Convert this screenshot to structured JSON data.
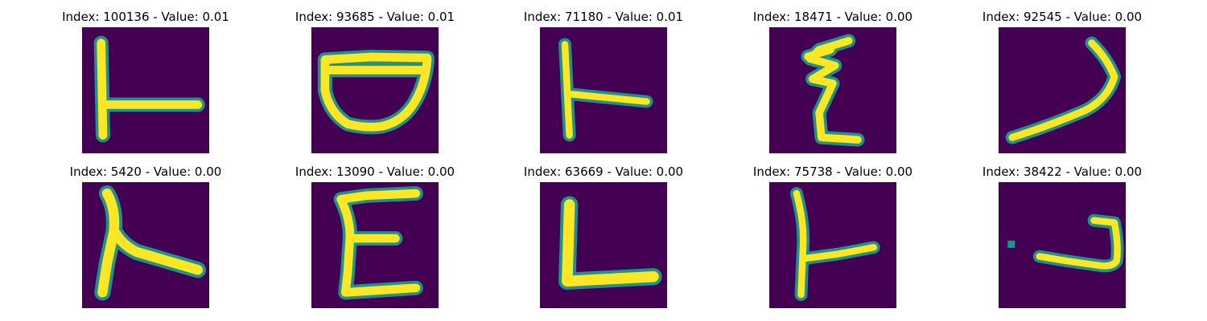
{
  "colors": {
    "background": "#440154",
    "stroke_mid": "#21918c",
    "stroke_hi": "#fde725",
    "stroke_lo": "#3b528b"
  },
  "panels": [
    {
      "title": "Index: 100136 - Value: 0.01",
      "glyph": "T rotated (vertical bar with right arm)"
    },
    {
      "title": "Index: 93685 - Value: 0.01",
      "glyph": "bowl shape"
    },
    {
      "title": "Index: 71180 - Value: 0.01",
      "glyph": "vertical bar with right arm"
    },
    {
      "title": "Index: 18471 - Value: 0.00",
      "glyph": "zigzag E shape"
    },
    {
      "title": "Index: 92545 - Value: 0.00",
      "glyph": "check / chevron shape"
    },
    {
      "title": "Index: 5420 - Value: 0.00",
      "glyph": "vertical bar with diagonal arm"
    },
    {
      "title": "Index: 13090 - Value: 0.00",
      "glyph": "E shape"
    },
    {
      "title": "Index: 63669 - Value: 0.00",
      "glyph": "L shape"
    },
    {
      "title": "Index: 75738 - Value: 0.00",
      "glyph": "vertical bar with right arm"
    },
    {
      "title": "Index: 38422 - Value: 0.00",
      "glyph": "hook shape with dot"
    }
  ]
}
